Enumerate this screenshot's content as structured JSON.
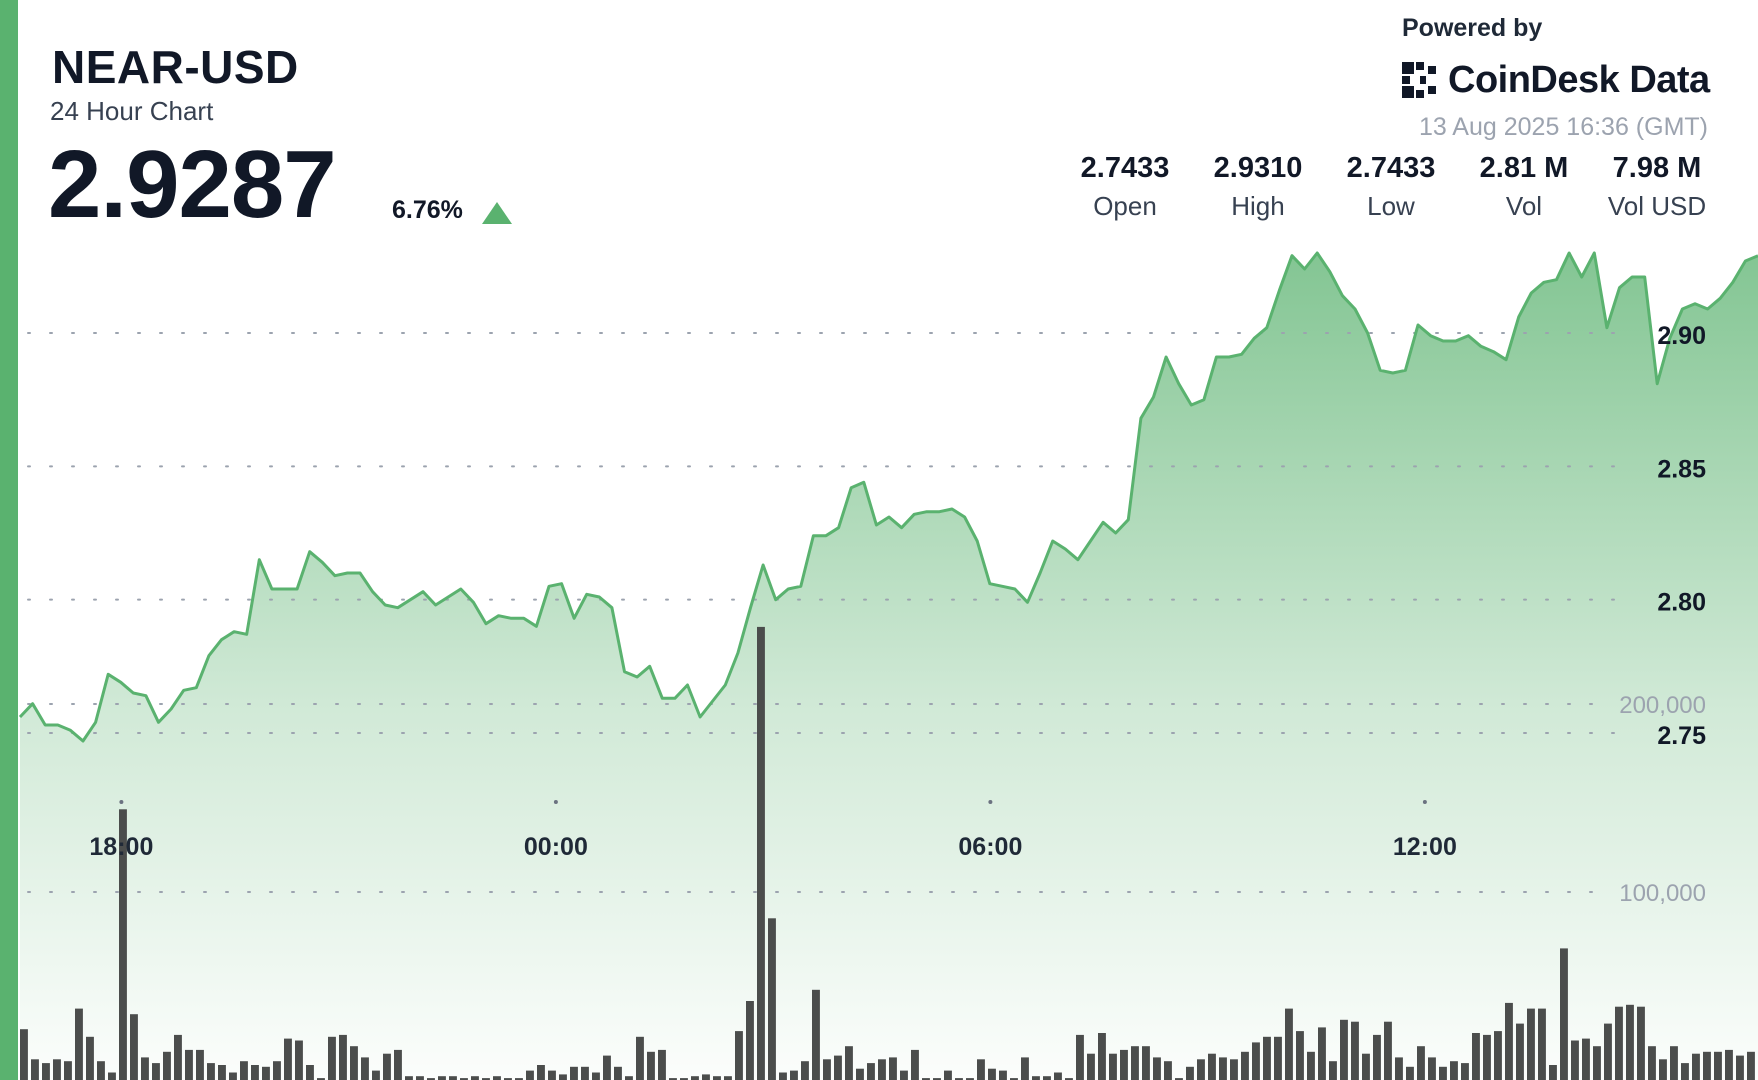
{
  "header": {
    "symbol": "NEAR-USD",
    "subtitle": "24 Hour Chart",
    "price": "2.9287",
    "change_pct": "6.76%",
    "change_direction_icon": "triangle-up-icon"
  },
  "branding": {
    "powered_by": "Powered by",
    "logo_text": "CoinDesk Data",
    "logo_icon": "coindesk-logo-icon"
  },
  "timestamp": "13 Aug 2025 16:36 (GMT)",
  "stats": [
    {
      "value": "2.7433",
      "label": "Open"
    },
    {
      "value": "2.9310",
      "label": "High"
    },
    {
      "value": "2.7433",
      "label": "Low"
    },
    {
      "value": "2.81 M",
      "label": "Vol"
    },
    {
      "value": "7.98 M",
      "label": "Vol USD"
    }
  ],
  "colors": {
    "accent": "#5ab26f",
    "line": "#5ab26f",
    "fill_top": "#5ab26f",
    "volume_bar": "#4b4d4c",
    "text": "#111827",
    "muted": "#9ca3af"
  },
  "chart_data": {
    "type": "area",
    "price_series": {
      "x_start": "16:36",
      "x_end": "16:36",
      "values": [
        2.756,
        2.761,
        2.753,
        2.753,
        2.751,
        2.747,
        2.754,
        2.772,
        2.769,
        2.765,
        2.764,
        2.754,
        2.759,
        2.766,
        2.767,
        2.779,
        2.785,
        2.788,
        2.787,
        2.815,
        2.804,
        2.804,
        2.804,
        2.818,
        2.814,
        2.809,
        2.81,
        2.81,
        2.803,
        2.798,
        2.797,
        2.8,
        2.803,
        2.798,
        2.801,
        2.804,
        2.799,
        2.791,
        2.794,
        2.793,
        2.793,
        2.79,
        2.805,
        2.806,
        2.793,
        2.802,
        2.801,
        2.797,
        2.773,
        2.771,
        2.775,
        2.763,
        2.763,
        2.768,
        2.756,
        2.762,
        2.768,
        2.78,
        2.797,
        2.813,
        2.8,
        2.804,
        2.805,
        2.824,
        2.824,
        2.827,
        2.842,
        2.844,
        2.828,
        2.831,
        2.827,
        2.832,
        2.833,
        2.833,
        2.834,
        2.831,
        2.822,
        2.806,
        2.805,
        2.804,
        2.799,
        2.81,
        2.822,
        2.819,
        2.815,
        2.822,
        2.829,
        2.825,
        2.83,
        2.868,
        2.876,
        2.891,
        2.881,
        2.873,
        2.875,
        2.891,
        2.891,
        2.892,
        2.898,
        2.902,
        2.916,
        2.929,
        2.924,
        2.93,
        2.923,
        2.914,
        2.909,
        2.9,
        2.886,
        2.885,
        2.886,
        2.903,
        2.899,
        2.897,
        2.897,
        2.899,
        2.895,
        2.893,
        2.89,
        2.906,
        2.915,
        2.919,
        2.92,
        2.93,
        2.921,
        2.93,
        2.902,
        2.917,
        2.921,
        2.921,
        2.881,
        2.898,
        2.909,
        2.911,
        2.909,
        2.913,
        2.919,
        2.927,
        2.929
      ]
    },
    "y_axis": {
      "ticks": [
        2.75,
        2.8,
        2.85,
        2.9
      ],
      "range": [
        2.71,
        2.956
      ]
    },
    "x_axis": {
      "ticks": [
        "18:00",
        "00:00",
        "06:00",
        "12:00"
      ],
      "tick_positions_hours": [
        1.4,
        7.4,
        13.4,
        19.4
      ],
      "span_hours": 24
    },
    "volume_axis": {
      "ticks": [
        "100,000",
        "200,000"
      ],
      "tick_values": [
        100000,
        200000
      ],
      "range": [
        0,
        290000
      ]
    },
    "volume_series": {
      "values": [
        27000,
        11000,
        9000,
        11000,
        10000,
        38000,
        23000,
        10000,
        4000,
        144000,
        35000,
        12000,
        9000,
        15000,
        24000,
        16000,
        16000,
        9000,
        8000,
        4000,
        10000,
        8000,
        7000,
        10000,
        22000,
        21000,
        8000,
        1000,
        23000,
        24000,
        18000,
        12000,
        5000,
        14000,
        16000,
        2000,
        2000,
        1000,
        2000,
        2000,
        1000,
        2000,
        1000,
        2000,
        1000,
        1000,
        5000,
        8000,
        5000,
        3000,
        7000,
        7000,
        4000,
        13000,
        7000,
        2000,
        23000,
        15000,
        16000,
        1000,
        1000,
        2000,
        3000,
        2000,
        2000,
        26000,
        42000,
        241000,
        86000,
        4000,
        5000,
        10000,
        48000,
        11000,
        13000,
        18000,
        6000,
        9000,
        11000,
        12000,
        5000,
        16000,
        1000,
        1000,
        5000,
        1000,
        1000,
        11000,
        6000,
        5000,
        1000,
        12000,
        2000,
        2000,
        4000,
        1000,
        24000,
        14000,
        25000,
        14000,
        16000,
        18000,
        18000,
        12000,
        10000,
        1000,
        7000,
        11000,
        14000,
        12000,
        11000,
        15000,
        20000,
        23000,
        23000,
        38000,
        26000,
        15000,
        28000,
        10000,
        32000,
        31000,
        14000,
        24000,
        31000,
        12000,
        7000,
        18000,
        12000,
        7000,
        10000,
        9000,
        25000,
        24000,
        26000,
        41000,
        30000,
        38000,
        38000,
        8000,
        70000,
        21000,
        22000,
        18000,
        30000,
        39000,
        40000,
        39000,
        18000,
        11000,
        18000,
        9000,
        14000,
        15000,
        15000,
        16000,
        13000,
        15000
      ]
    },
    "last_price_marker": 2.9287
  }
}
